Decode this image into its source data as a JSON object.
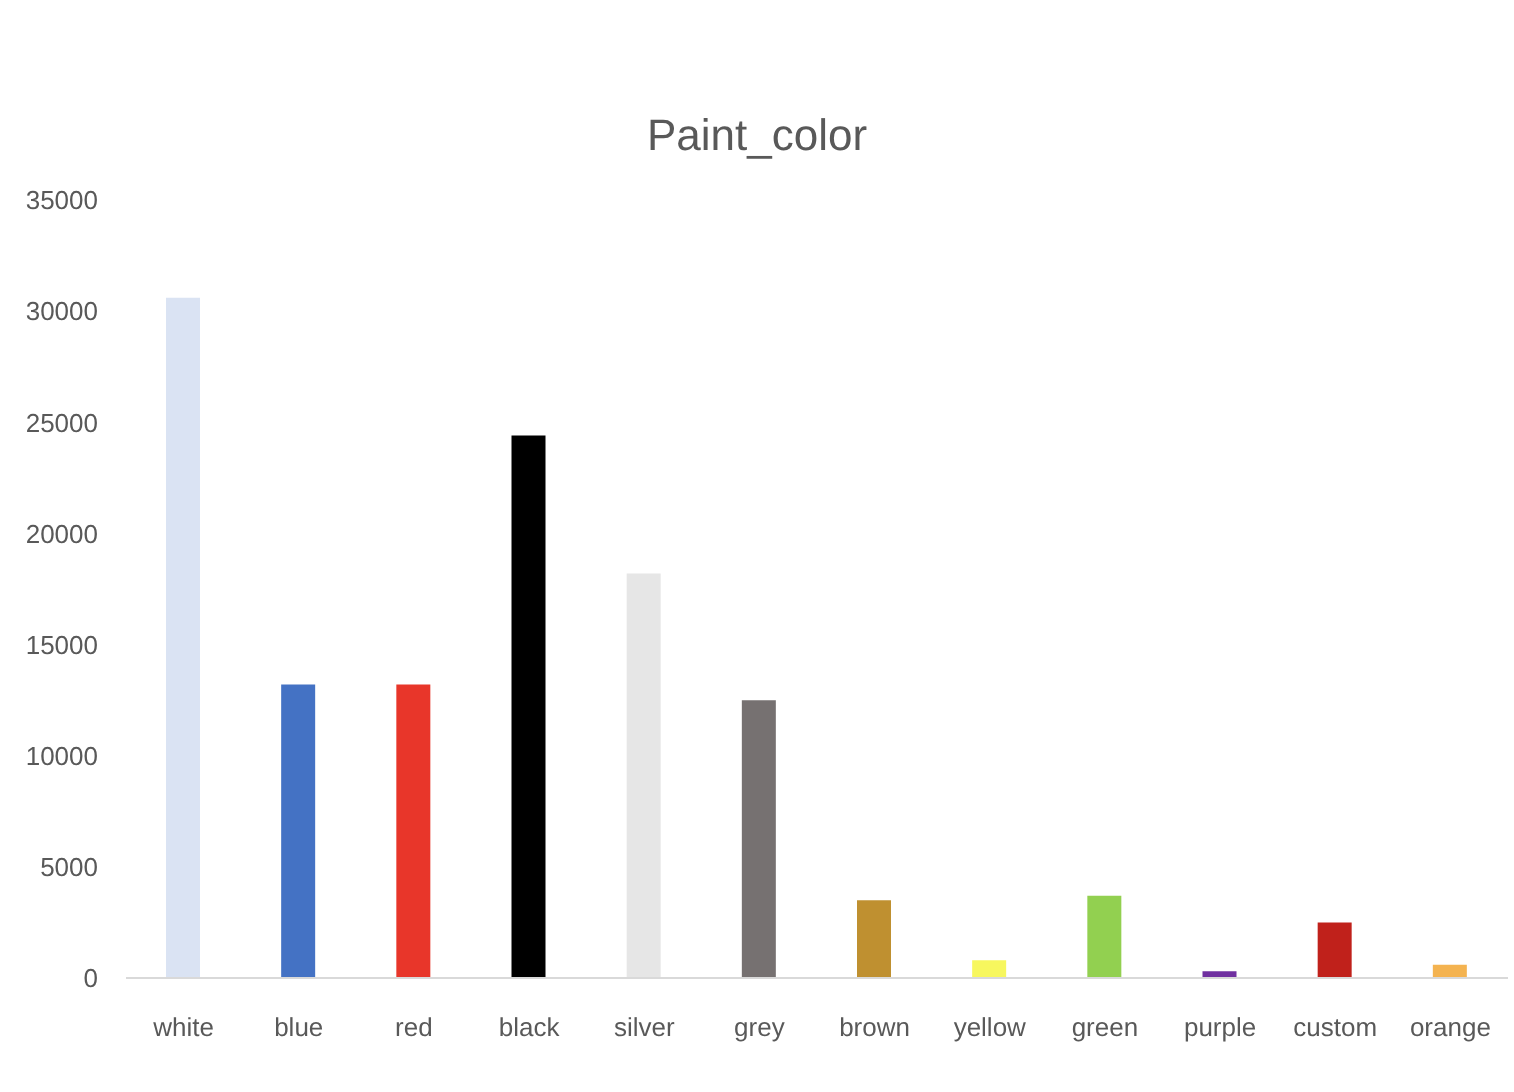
{
  "chart_data": {
    "type": "bar",
    "title": "Paint_color",
    "categories": [
      "white",
      "blue",
      "red",
      "black",
      "silver",
      "grey",
      "brown",
      "yellow",
      "green",
      "purple",
      "custom",
      "orange"
    ],
    "values": [
      30600,
      13200,
      13200,
      24400,
      18200,
      12500,
      3500,
      800,
      3700,
      300,
      2500,
      600
    ],
    "colors": [
      "#dae3f3",
      "#4472c4",
      "#e8362a",
      "#000000",
      "#e6e6e6",
      "#767171",
      "#bf9030",
      "#f7f75e",
      "#92d050",
      "#7030a0",
      "#c0211b",
      "#f4b350"
    ],
    "ylim": [
      0,
      35000
    ],
    "yticks": [
      0,
      5000,
      10000,
      15000,
      20000,
      25000,
      30000,
      35000
    ]
  }
}
